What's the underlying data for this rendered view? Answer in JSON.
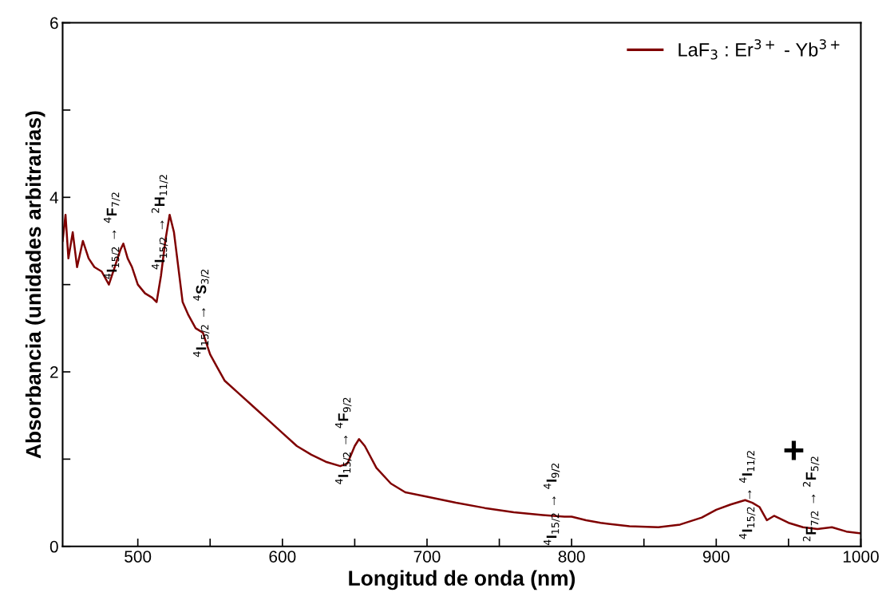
{
  "chart_data": {
    "type": "line",
    "xlabel": "Longitud de onda (nm)",
    "ylabel": "Absorbancia (unidades arbitrarias)",
    "xlim": [
      448,
      1000
    ],
    "ylim": [
      0,
      6
    ],
    "xticks": [
      500,
      {
        "value": 550,
        "label": null
      },
      600,
      {
        "value": 650,
        "label": null
      },
      700,
      {
        "value": 750,
        "label": null
      },
      800,
      {
        "value": 850,
        "label": null
      },
      900,
      {
        "value": 950,
        "label": null
      },
      1000
    ],
    "yticks": [
      0,
      {
        "value": 1,
        "label": null
      },
      2,
      {
        "value": 3,
        "label": null
      },
      4,
      {
        "value": 5,
        "label": null
      },
      6
    ],
    "grid": false,
    "legend": "top right",
    "marker": "none",
    "line_style": "solid",
    "x": [
      448,
      450,
      452,
      455,
      458,
      462,
      466,
      470,
      475,
      480,
      484,
      488,
      490,
      493,
      496,
      500,
      505,
      510,
      513,
      516,
      519,
      522,
      525,
      528,
      531,
      535,
      540,
      545,
      550,
      555,
      560,
      570,
      580,
      590,
      600,
      610,
      620,
      630,
      640,
      645,
      650,
      653,
      657,
      665,
      675,
      685,
      700,
      720,
      740,
      760,
      780,
      795,
      800,
      810,
      820,
      840,
      860,
      875,
      890,
      900,
      910,
      920,
      925,
      930,
      935,
      940,
      950,
      960,
      970,
      980,
      990,
      1000
    ],
    "series": [
      {
        "name": "LaF$_{3}$ : Er$^{3+}$ - Yb$^{3+}$",
        "color": "#7f0000",
        "values": [
          3.5,
          3.8,
          3.3,
          3.6,
          3.2,
          3.5,
          3.3,
          3.2,
          3.15,
          3.0,
          3.2,
          3.4,
          3.47,
          3.3,
          3.2,
          3.0,
          2.9,
          2.85,
          2.8,
          3.1,
          3.5,
          3.8,
          3.6,
          3.2,
          2.8,
          2.65,
          2.5,
          2.45,
          2.2,
          2.05,
          1.9,
          1.75,
          1.6,
          1.45,
          1.3,
          1.15,
          1.05,
          0.97,
          0.92,
          0.95,
          1.15,
          1.23,
          1.15,
          0.9,
          0.72,
          0.62,
          0.57,
          0.5,
          0.44,
          0.39,
          0.36,
          0.34,
          0.34,
          0.3,
          0.27,
          0.23,
          0.22,
          0.25,
          0.33,
          0.42,
          0.48,
          0.53,
          0.5,
          0.45,
          0.3,
          0.35,
          0.27,
          0.22,
          0.2,
          0.22,
          0.17,
          0.15
        ]
      }
    ],
    "annotations": [
      "$^{4}$I$_{15/2}$ → $^{4}$F$_{7/2}$",
      "$^{4}$I$_{15/2}$ → $^{2}$H$_{11/2}$",
      "$^{4}$I$_{15/2}$ → $^{4}$S$_{3/2}$",
      "$^{4}$I$_{15/2}$ → $^{4}$F$_{9/2}$",
      "$^{4}$I$_{15/2}$ → $^{4}$I$_{9/2}$",
      "$^{4}$I$_{15/2}$ → $^{4}$I$_{11/2}$",
      "+",
      "$^{2}$F$_{7/2}$ → $^{2}$F$_{5/2}$"
    ]
  }
}
